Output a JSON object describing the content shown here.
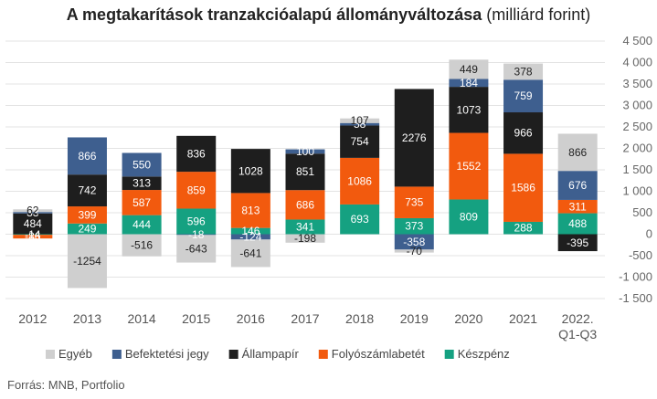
{
  "title": "A megtakarítások tranzakcióalapú állományváltozása",
  "subtitle": "(milliárd forint)",
  "source": "Forrás: MNB, Portfolio",
  "colors": {
    "Egyéb": "#cfcfcf",
    "Befektetési jegy": "#3e5f8f",
    "Állampapír": "#1e1e1e",
    "Folyószámlabetét": "#f25a0e",
    "Készpénz": "#15a181"
  },
  "chart_data": {
    "type": "bar",
    "stacked": true,
    "categories": [
      "2012",
      "2013",
      "2014",
      "2015",
      "2016",
      "2017",
      "2018",
      "2019",
      "2020",
      "2021",
      "2022. Q1-Q3"
    ],
    "series": [
      {
        "name": "Készpénz",
        "values": [
          -14,
          249,
          444,
          596,
          146,
          341,
          693,
          373,
          809,
          288,
          488
        ]
      },
      {
        "name": "Folyószámlabetét",
        "values": [
          -86,
          399,
          587,
          859,
          813,
          686,
          1086,
          735,
          1552,
          1586,
          311
        ]
      },
      {
        "name": "Állampapír",
        "values": [
          484,
          742,
          313,
          836,
          1028,
          851,
          754,
          2276,
          1073,
          966,
          -395
        ]
      },
      {
        "name": "Befektetési jegy",
        "values": [
          33,
          866,
          550,
          -18,
          -124,
          100,
          58,
          -358,
          184,
          759,
          676
        ]
      },
      {
        "name": "Egyéb",
        "values": [
          62,
          -1254,
          -516,
          -643,
          -641,
          -198,
          107,
          -70,
          449,
          378,
          866
        ]
      }
    ],
    "ylim": [
      -1500,
      4500
    ],
    "yticks": [
      -1500,
      -1000,
      -500,
      0,
      500,
      1000,
      1500,
      2000,
      2500,
      3000,
      3500,
      4000,
      4500
    ],
    "ytick_labels": [
      "-1 500",
      "-1 000",
      "-500",
      "0",
      "500",
      "1 000",
      "1 500",
      "2 000",
      "2 500",
      "3 000",
      "3 500",
      "4 000",
      "4 500"
    ],
    "grid": true,
    "legend_position": "bottom",
    "legend_order": [
      "Egyéb",
      "Befektetési jegy",
      "Állampapír",
      "Folyószámlabetét",
      "Készpénz"
    ],
    "data_labels": [
      [
        "-14",
        "-86",
        "484",
        "33",
        "62"
      ],
      [
        "249",
        "399",
        "742",
        "866",
        "-1254"
      ],
      [
        "444",
        "587",
        "313",
        "550",
        "-516"
      ],
      [
        "596",
        "859",
        "836",
        "-18",
        "-643"
      ],
      [
        "146",
        "813",
        "1028",
        "-124",
        "-641"
      ],
      [
        "341",
        "686",
        "851",
        "100",
        "-198"
      ],
      [
        "693",
        "1086",
        "754",
        "58",
        "107"
      ],
      [
        "373",
        "735",
        "2276",
        "-358",
        "-70"
      ],
      [
        "809",
        "1552",
        "1073",
        "184",
        "449"
      ],
      [
        "288",
        "1586",
        "966",
        "759",
        "378"
      ],
      [
        "488",
        "311",
        "-395",
        "676",
        "866"
      ]
    ]
  }
}
